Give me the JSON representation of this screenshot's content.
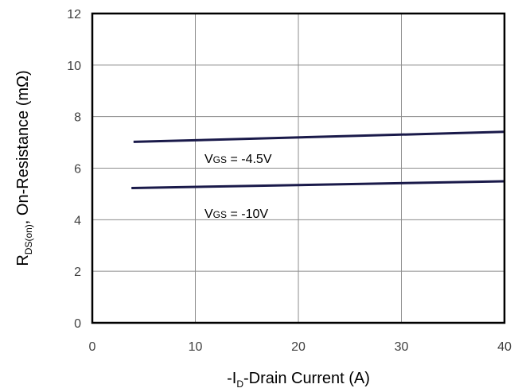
{
  "chart_data": {
    "type": "line",
    "xlabel": {
      "prefix": "-I",
      "sub": "D",
      "suffix": "-Drain Current (A)"
    },
    "ylabel": {
      "prefix": "R",
      "sub": "DS(on)",
      "suffix": ",  On-Resistance (mΩ)"
    },
    "xlim": [
      0,
      40
    ],
    "ylim": [
      0,
      12
    ],
    "xticks": [
      0,
      10,
      20,
      30,
      40
    ],
    "yticks": [
      0,
      2,
      4,
      6,
      8,
      10,
      12
    ],
    "grid": true,
    "series": [
      {
        "label_prefix": "V",
        "label_sub": "GS",
        "label_suffix": " = -4.5V",
        "x": [
          4,
          40
        ],
        "y": [
          7.02,
          7.41
        ]
      },
      {
        "label_prefix": "V",
        "label_sub": "GS",
        "label_suffix": " = -10V",
        "x": [
          3.8,
          40
        ],
        "y": [
          5.23,
          5.49
        ]
      }
    ],
    "colors": {
      "series": "#1a1a4a",
      "grid": "#8c8c8c",
      "frame": "#000000"
    }
  }
}
